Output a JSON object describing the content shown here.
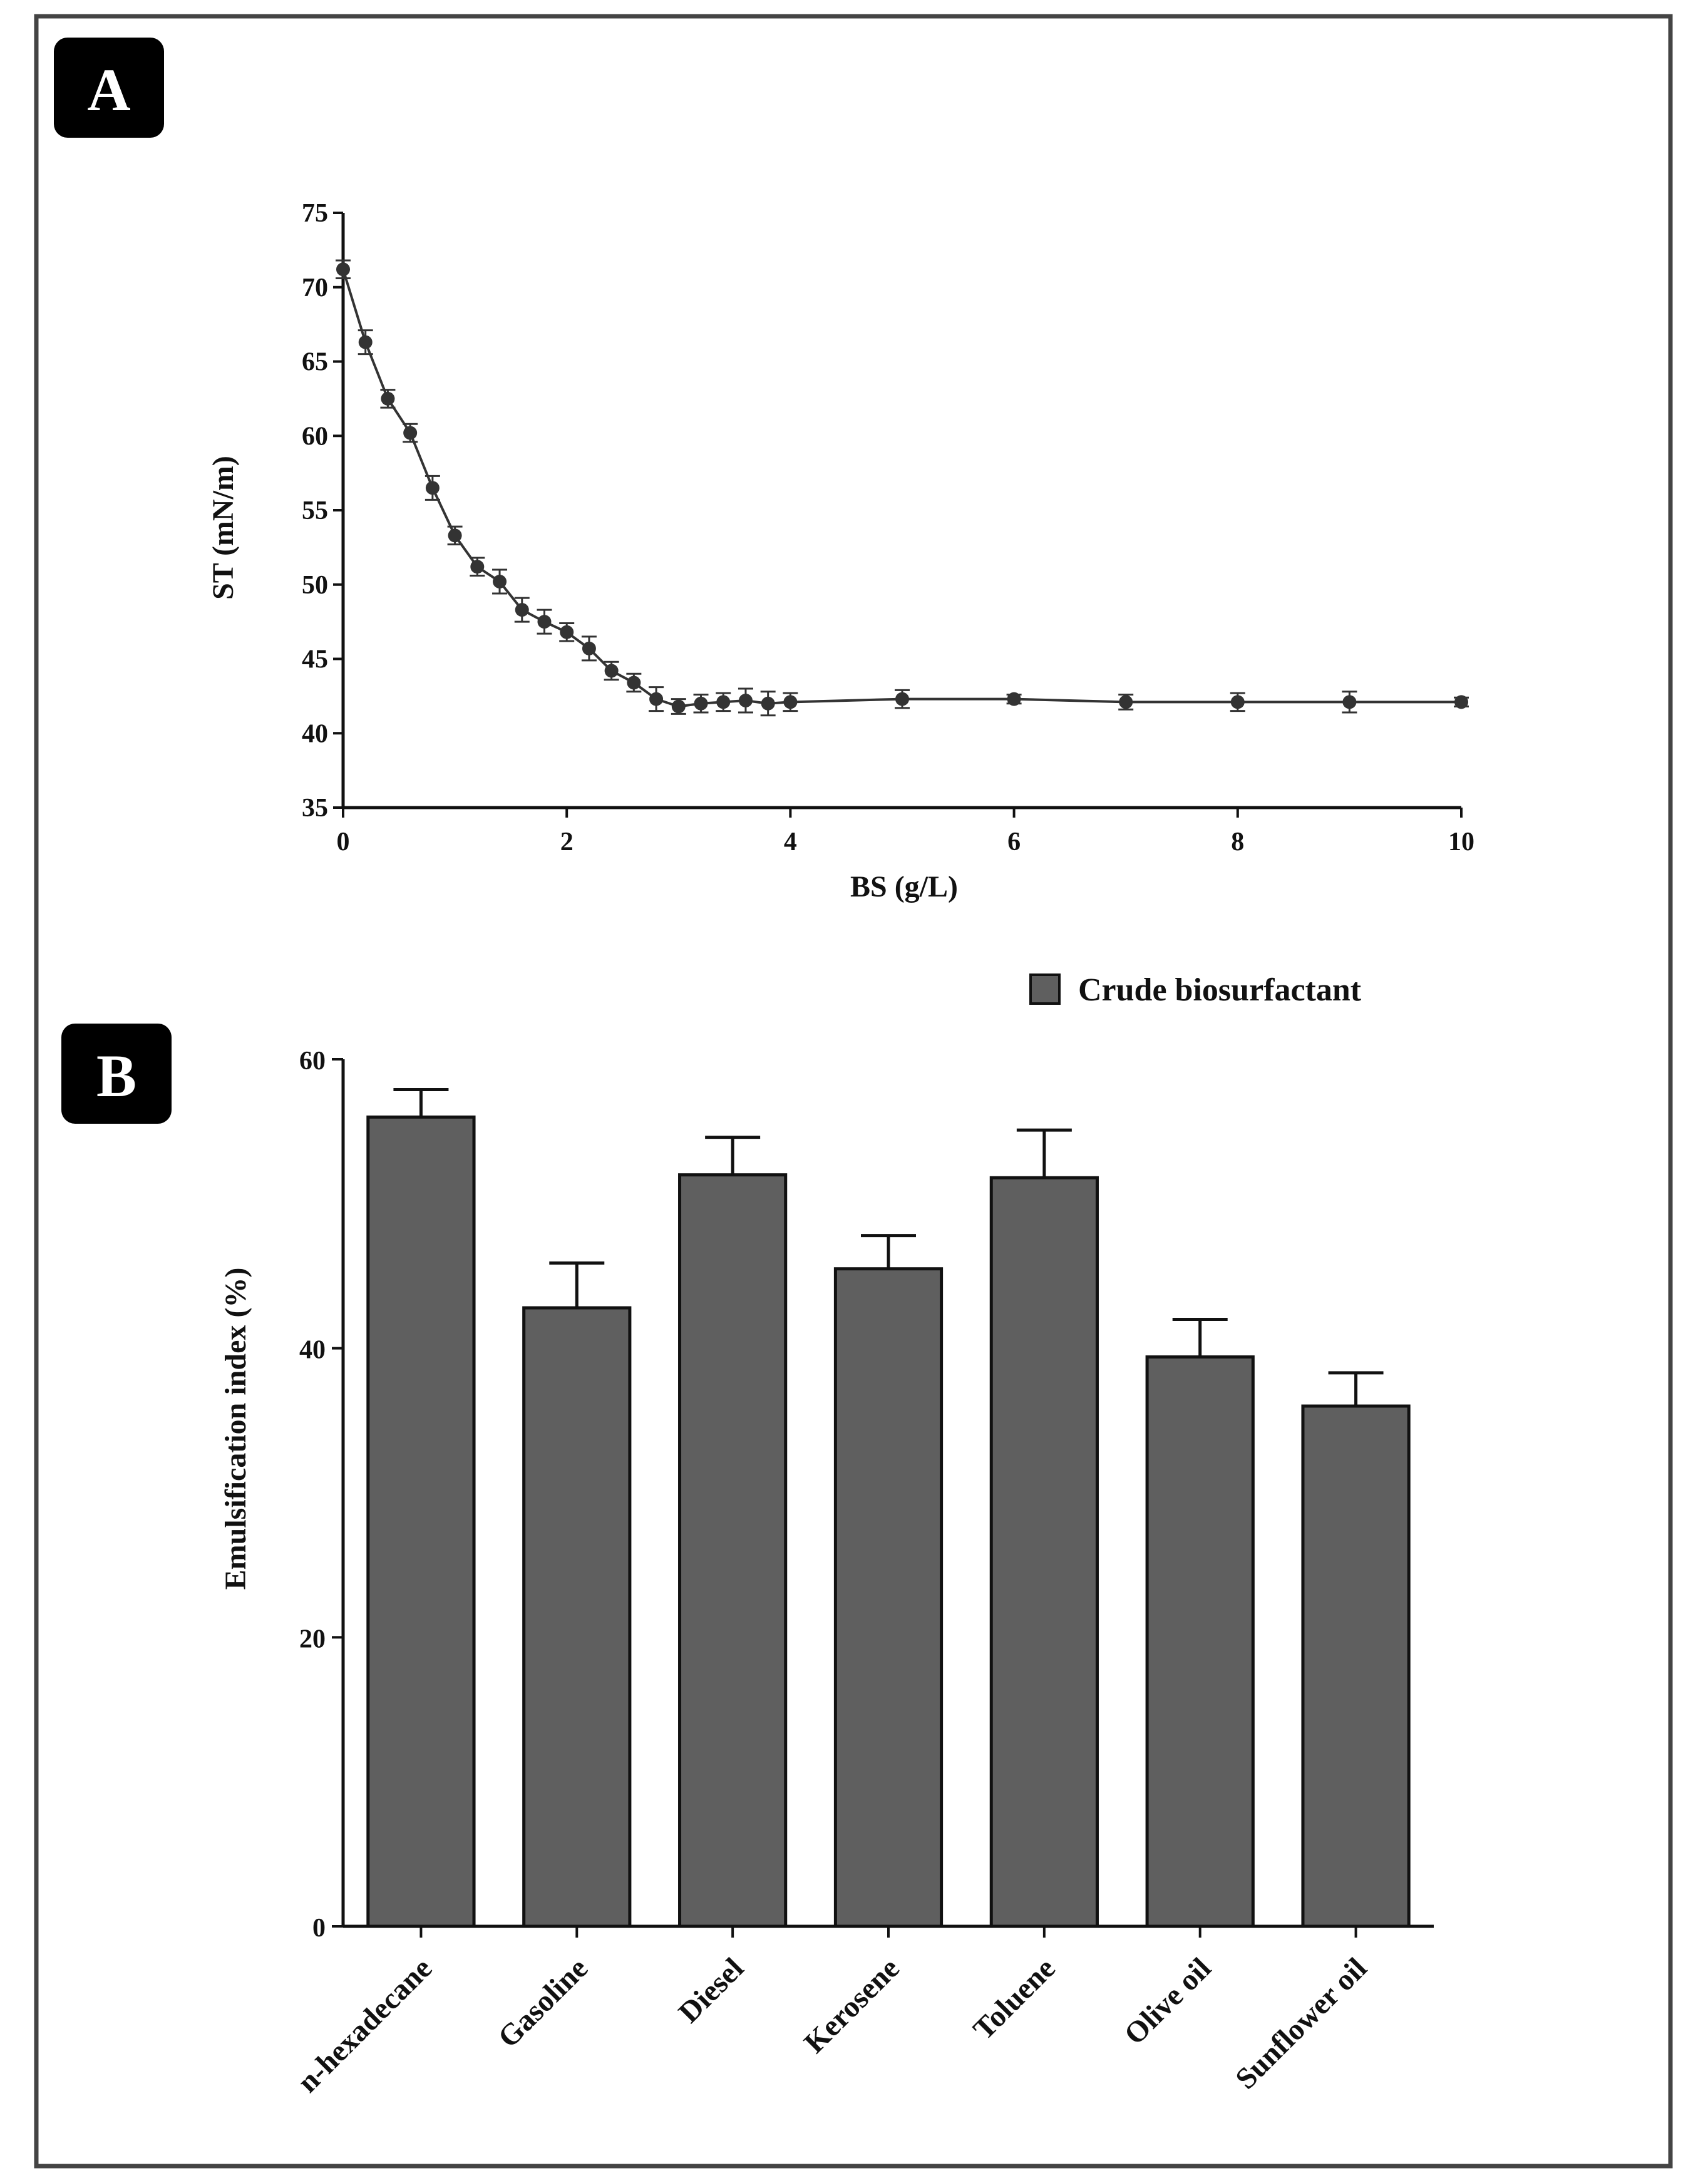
{
  "panel_labels": {
    "a": "A",
    "b": "B"
  },
  "chart_data": [
    {
      "type": "line",
      "panel": "A",
      "xlabel": "BS (g/L)",
      "ylabel": "ST (mN/m)",
      "xlim": [
        0,
        10
      ],
      "ylim": [
        35,
        75
      ],
      "xticks": [
        "0",
        "2",
        "4",
        "6",
        "8",
        "10"
      ],
      "xtick_values": [
        0,
        2,
        4,
        6,
        8,
        10
      ],
      "yticks": [
        "35",
        "40",
        "45",
        "50",
        "55",
        "60",
        "65",
        "70",
        "75"
      ],
      "ytick_values": [
        35,
        40,
        45,
        50,
        55,
        60,
        65,
        70,
        75
      ],
      "x": [
        0,
        0.2,
        0.4,
        0.6,
        0.8,
        1.0,
        1.2,
        1.4,
        1.6,
        1.8,
        2.0,
        2.2,
        2.4,
        2.6,
        2.8,
        3.0,
        3.2,
        3.4,
        3.6,
        3.8,
        4.0,
        5,
        6,
        7,
        8,
        9,
        10
      ],
      "y": [
        71.2,
        66.3,
        62.5,
        60.2,
        56.5,
        53.3,
        51.2,
        50.2,
        48.3,
        47.5,
        46.8,
        45.7,
        44.2,
        43.4,
        42.3,
        41.8,
        42.0,
        42.1,
        42.2,
        42.0,
        42.1,
        42.3,
        42.3,
        42.1,
        42.1,
        42.1,
        42.1
      ],
      "errors": [
        0.6,
        0.8,
        0.6,
        0.6,
        0.8,
        0.6,
        0.6,
        0.8,
        0.8,
        0.8,
        0.6,
        0.8,
        0.6,
        0.6,
        0.8,
        0.5,
        0.6,
        0.6,
        0.8,
        0.8,
        0.6,
        0.6,
        0.3,
        0.5,
        0.6,
        0.7,
        0.3
      ],
      "color": "#333333"
    },
    {
      "type": "bar",
      "panel": "B",
      "ylabel": "Emulsification index (%)",
      "ylim": [
        0,
        60
      ],
      "yticks": [
        "0",
        "20",
        "40",
        "60"
      ],
      "ytick_values": [
        0,
        20,
        40,
        60
      ],
      "categories": [
        "n-hexadecane",
        "Gasoline",
        "Diesel",
        "Kerosene",
        "Toluene",
        "Olive oil",
        "Sunflower oil"
      ],
      "series": [
        {
          "name": "Crude biosurfactant",
          "values": [
            56.0,
            42.8,
            52.0,
            45.5,
            51.8,
            39.4,
            36.0
          ],
          "errors": [
            1.9,
            3.1,
            2.6,
            2.3,
            3.3,
            2.6,
            2.3
          ]
        }
      ],
      "legend": "top-right",
      "bar_color": "#5f5f5f"
    }
  ]
}
